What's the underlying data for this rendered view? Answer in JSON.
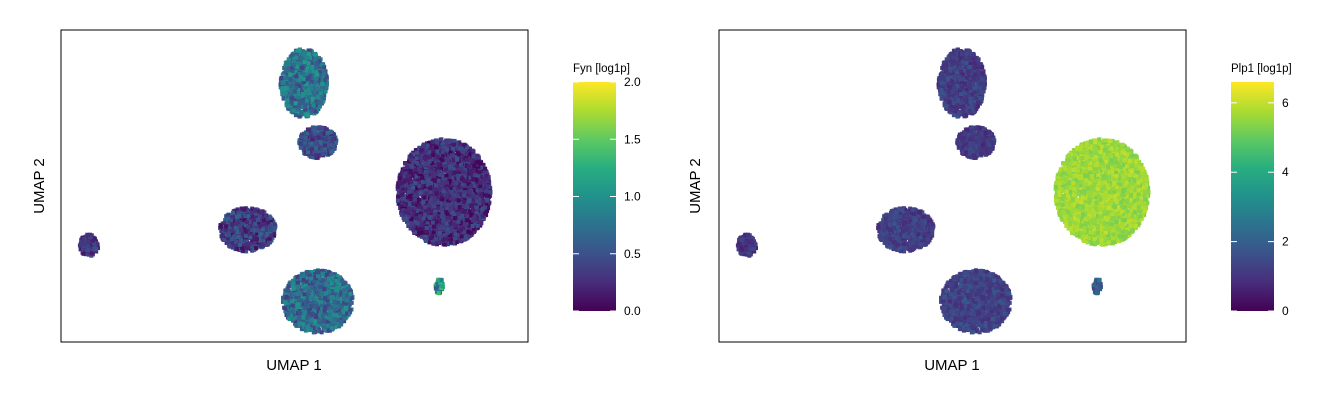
{
  "chart_data": [
    {
      "type": "scatter",
      "title": "",
      "xlabel": "UMAP 1",
      "ylabel": "UMAP 2",
      "colorbar": {
        "label": "Fyn [log1p]",
        "min": 0.0,
        "max": 2.0,
        "ticks": [
          "0.0",
          "0.5",
          "1.0",
          "1.5",
          "2.0"
        ],
        "tick_values": [
          0,
          0.5,
          1.0,
          1.5,
          2.0
        ],
        "colormap": "viridis"
      },
      "clusters": [
        {
          "id": "top",
          "cx": 0.52,
          "cy": 0.83,
          "rx": 0.05,
          "ry": 0.11,
          "mean": 0.75,
          "spread": 0.35
        },
        {
          "id": "top-tail",
          "cx": 0.55,
          "cy": 0.64,
          "rx": 0.04,
          "ry": 0.05,
          "mean": 0.45,
          "spread": 0.25
        },
        {
          "id": "right",
          "cx": 0.82,
          "cy": 0.48,
          "rx": 0.1,
          "ry": 0.17,
          "mean": 0.25,
          "spread": 0.25
        },
        {
          "id": "left-mid",
          "cx": 0.4,
          "cy": 0.36,
          "rx": 0.06,
          "ry": 0.07,
          "mean": 0.35,
          "spread": 0.3
        },
        {
          "id": "bottom",
          "cx": 0.55,
          "cy": 0.13,
          "rx": 0.075,
          "ry": 0.1,
          "mean": 0.7,
          "spread": 0.35
        },
        {
          "id": "far-left",
          "cx": 0.06,
          "cy": 0.31,
          "rx": 0.02,
          "ry": 0.035,
          "mean": 0.3,
          "spread": 0.2
        },
        {
          "id": "small",
          "cx": 0.81,
          "cy": 0.18,
          "rx": 0.008,
          "ry": 0.025,
          "mean": 1.0,
          "spread": 0.6
        }
      ]
    },
    {
      "type": "scatter",
      "title": "",
      "xlabel": "UMAP 1",
      "ylabel": "UMAP 2",
      "colorbar": {
        "label": "Plp1 [log1p]",
        "min": 0,
        "max": 6.6,
        "ticks": [
          "0",
          "2",
          "4",
          "6"
        ],
        "tick_values": [
          0,
          2,
          4,
          6
        ],
        "colormap": "viridis"
      },
      "clusters": [
        {
          "id": "top",
          "cx": 0.52,
          "cy": 0.83,
          "rx": 0.05,
          "ry": 0.11,
          "mean": 1.2,
          "spread": 0.5
        },
        {
          "id": "top-tail",
          "cx": 0.55,
          "cy": 0.64,
          "rx": 0.04,
          "ry": 0.05,
          "mean": 1.1,
          "spread": 0.4
        },
        {
          "id": "right",
          "cx": 0.82,
          "cy": 0.48,
          "rx": 0.1,
          "ry": 0.17,
          "mean": 5.6,
          "spread": 0.4
        },
        {
          "id": "left-mid",
          "cx": 0.4,
          "cy": 0.36,
          "rx": 0.06,
          "ry": 0.07,
          "mean": 1.2,
          "spread": 0.5
        },
        {
          "id": "bottom",
          "cx": 0.55,
          "cy": 0.13,
          "rx": 0.075,
          "ry": 0.1,
          "mean": 1.3,
          "spread": 0.5
        },
        {
          "id": "far-left",
          "cx": 0.06,
          "cy": 0.31,
          "rx": 0.02,
          "ry": 0.035,
          "mean": 1.0,
          "spread": 0.4
        },
        {
          "id": "small",
          "cx": 0.81,
          "cy": 0.18,
          "rx": 0.008,
          "ry": 0.025,
          "mean": 2.0,
          "spread": 0.6
        }
      ]
    }
  ]
}
